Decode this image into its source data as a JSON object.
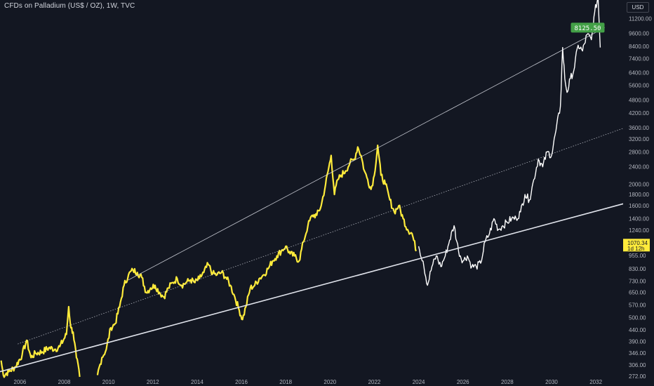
{
  "header": {
    "symbol_title": "CFDs on Palladium (US$ / OZ), 1W, TVC",
    "currency": "USD"
  },
  "colors": {
    "background": "#131722",
    "history_line": "#ffeb3b",
    "projection_line": "#ffffff",
    "trendline": "#e0e3eb",
    "target_badge": "#43a047",
    "price_badge": "#ffeb3b"
  },
  "chart_data": {
    "type": "line",
    "y_scale": "log",
    "ylim": [
      268,
      13600
    ],
    "xlim": [
      2005.1,
      2033.2
    ],
    "x_ticks": [
      "2006",
      "2008",
      "2010",
      "2012",
      "2014",
      "2016",
      "2018",
      "2020",
      "2022",
      "2024",
      "2026",
      "2028",
      "2030",
      "2032"
    ],
    "y_ticks": [
      "11200.00",
      "9600.00",
      "8400.00",
      "7400.00",
      "6400.00",
      "5600.00",
      "4800.00",
      "4200.00",
      "3600.00",
      "3200.00",
      "2800.00",
      "2400.00",
      "2000.00",
      "1800.00",
      "1600.00",
      "1400.00",
      "1240.00",
      "955.00",
      "830.00",
      "730.00",
      "650.00",
      "570.00",
      "500.00",
      "440.00",
      "390.00",
      "346.00",
      "306.00",
      "272.00"
    ],
    "series": [
      {
        "style": "history",
        "x": [
          2005.15,
          2005.25,
          2005.5,
          2005.8,
          2006.1,
          2006.3,
          2006.5,
          2006.7,
          2007.0,
          2007.3,
          2007.6,
          2007.8,
          2008.1,
          2008.2,
          2008.3,
          2008.4,
          2008.55,
          2008.7
        ],
        "y": [
          320,
          275,
          285,
          300,
          340,
          395,
          330,
          345,
          350,
          365,
          360,
          370,
          420,
          560,
          450,
          430,
          330,
          270
        ]
      },
      {
        "style": "history",
        "x": [
          2009.5,
          2009.7,
          2009.9,
          2010.1,
          2010.3,
          2010.5,
          2010.7,
          2010.9,
          2011.1,
          2011.3,
          2011.5,
          2011.7,
          2011.9,
          2012.1,
          2012.3,
          2012.5,
          2012.7,
          2012.9,
          2013.1,
          2013.3,
          2013.5,
          2013.7,
          2013.9,
          2014.1,
          2014.3,
          2014.5,
          2014.7,
          2014.9,
          2015.1,
          2015.3,
          2015.5,
          2015.7,
          2015.9,
          2016.05,
          2016.2,
          2016.4,
          2016.6,
          2016.8,
          2017.0,
          2017.2,
          2017.4,
          2017.6,
          2017.8,
          2018.0,
          2018.2,
          2018.4,
          2018.6,
          2018.8,
          2019.0,
          2019.2,
          2019.4,
          2019.6,
          2019.8,
          2020.05,
          2020.2,
          2020.35,
          2020.5,
          2020.7,
          2020.9,
          2021.1,
          2021.25,
          2021.4,
          2021.55,
          2021.7,
          2021.85,
          2022.0,
          2022.15,
          2022.3,
          2022.5,
          2022.7,
          2022.9,
          2023.1,
          2023.3,
          2023.5,
          2023.7,
          2023.9
        ],
        "y": [
          275,
          330,
          360,
          450,
          470,
          560,
          700,
          780,
          820,
          800,
          760,
          650,
          680,
          700,
          650,
          620,
          680,
          720,
          750,
          700,
          720,
          740,
          720,
          750,
          800,
          870,
          790,
          780,
          800,
          760,
          700,
          620,
          540,
          490,
          560,
          680,
          700,
          750,
          780,
          830,
          900,
          950,
          1000,
          1050,
          970,
          950,
          900,
          1100,
          1300,
          1450,
          1450,
          1600,
          2000,
          2700,
          1800,
          2100,
          2200,
          2300,
          2500,
          2600,
          2950,
          2700,
          2300,
          2100,
          1900,
          2200,
          3000,
          2200,
          2000,
          1700,
          1500,
          1600,
          1400,
          1250,
          1200,
          1000
        ]
      },
      {
        "style": "projection",
        "x": [
          2024.0,
          2024.2,
          2024.4,
          2024.6,
          2024.8,
          2025.0,
          2025.2,
          2025.4,
          2025.6,
          2025.8,
          2026.0,
          2026.2,
          2026.4,
          2026.6,
          2026.8,
          2027.0,
          2027.2,
          2027.4,
          2027.6,
          2027.8,
          2028.0,
          2028.2,
          2028.4,
          2028.6,
          2028.8,
          2029.0,
          2029.2,
          2029.4,
          2029.6,
          2029.8,
          2030.0,
          2030.2,
          2030.4,
          2030.5,
          2030.6,
          2030.7,
          2030.85,
          2031.0,
          2031.2,
          2031.4,
          2031.6,
          2031.8,
          2031.95,
          2032.1,
          2032.2
        ],
        "y": [
          1050,
          900,
          700,
          850,
          950,
          850,
          950,
          1120,
          1300,
          1000,
          900,
          950,
          850,
          850,
          880,
          1100,
          1200,
          1400,
          1250,
          1300,
          1350,
          1400,
          1400,
          1500,
          1800,
          1700,
          2100,
          2600,
          2400,
          2800,
          2700,
          3500,
          4500,
          8300,
          6000,
          5200,
          6000,
          6500,
          8500,
          8000,
          9500,
          9000,
          12000,
          14000,
          8300
        ]
      }
    ],
    "trendlines": [
      {
        "style": "thin",
        "x": [
          2010.9,
          2032.4
        ],
        "y": [
          740,
          10200
        ]
      },
      {
        "style": "dotted",
        "x": [
          2005.9,
          2033.3
        ],
        "y": [
          380,
          3600
        ]
      },
      {
        "style": "thick",
        "x": [
          2005.1,
          2033.3
        ],
        "y": [
          285,
          1640
        ]
      }
    ],
    "markers": {
      "target_label": "8125.50",
      "target_x": 2031.6,
      "target_y": 10200,
      "last_price_label": "1070.34",
      "countdown_label": "1d 12h",
      "last_price": 1070.34
    }
  }
}
